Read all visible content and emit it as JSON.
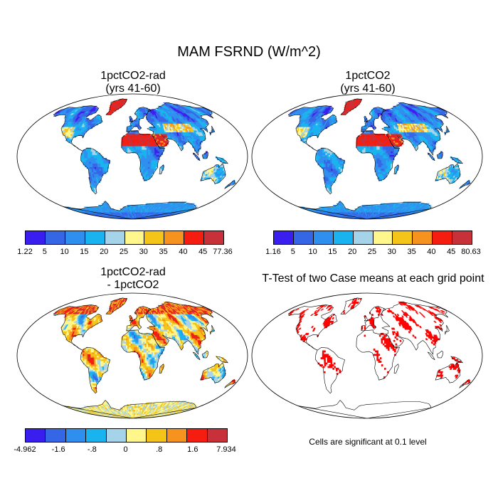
{
  "title": "MAM FSRND (W/m^2)",
  "panels": [
    {
      "title_line1": "1pctCO2-rad",
      "title_line2": "(yrs 41-60)"
    },
    {
      "title_line1": "1pctCO2",
      "title_line2": "(yrs 41-60)"
    },
    {
      "title_line1": "1pctCO2-rad",
      "title_line2": "- 1pctCO2"
    },
    {
      "title_line1": "T-Test of two Case means at each grid point",
      "note": "Cells are significant at 0.1 level"
    }
  ],
  "colors": {
    "seq": [
      "#3a1ef0",
      "#3566e6",
      "#2e8fef",
      "#19b3ef",
      "#a5d3ea",
      "#fff68c",
      "#f5c418",
      "#f6931f",
      "#f51c10",
      "#c8303a"
    ],
    "diff": [
      "#3a1ef0",
      "#3566e6",
      "#2e8fef",
      "#19b3ef",
      "#a5d3ea",
      "#fff68c",
      "#f5c418",
      "#f6931f",
      "#f51c10",
      "#c8303a"
    ],
    "significant": "#ff0000",
    "land_outline": "#000000"
  },
  "colorbars": {
    "a": {
      "labels": [
        "1.22",
        "5",
        "10",
        "15",
        "20",
        "25",
        "30",
        "35",
        "40",
        "45",
        "77.36"
      ]
    },
    "b": {
      "labels": [
        "1.16",
        "5",
        "10",
        "15",
        "20",
        "25",
        "30",
        "35",
        "40",
        "45",
        "80.63"
      ]
    },
    "c": {
      "labels": [
        "-4.962",
        "-1.6",
        "-.8",
        "0",
        ".8",
        "1.6",
        "7.934"
      ]
    }
  }
}
